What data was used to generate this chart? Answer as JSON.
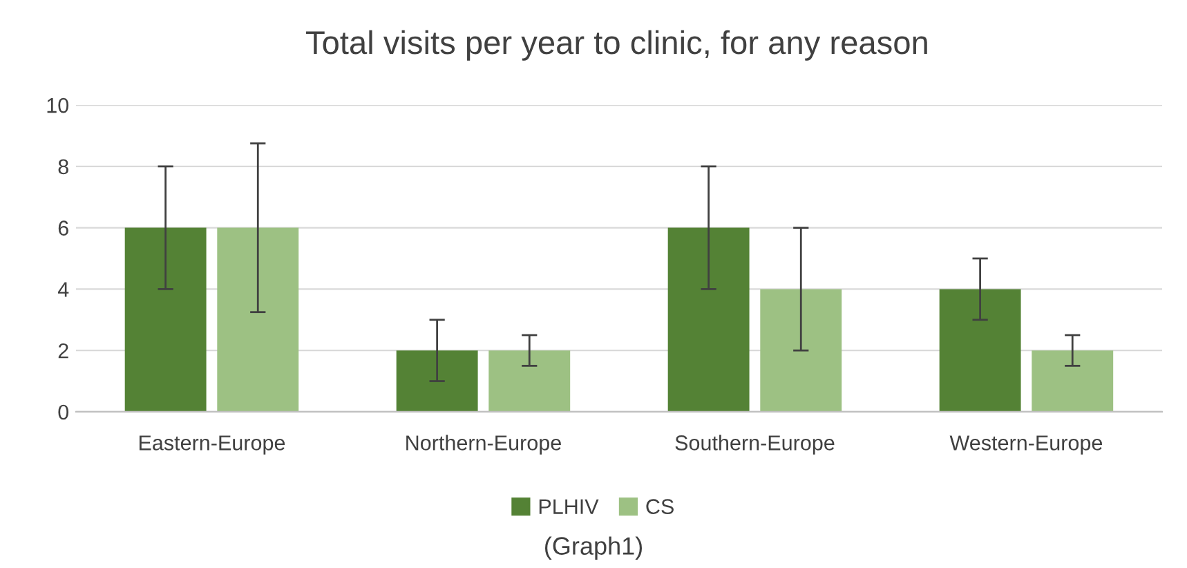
{
  "chart_data": {
    "type": "bar",
    "title": "Total visits per year to clinic, for any reason",
    "categories": [
      "Eastern-Europe",
      "Northern-Europe",
      "Southern-Europe",
      "Western-Europe"
    ],
    "series": [
      {
        "name": "PLHIV",
        "color": "#548235",
        "values": [
          6,
          2,
          6,
          4
        ],
        "errors": [
          2,
          1,
          2,
          1
        ]
      },
      {
        "name": "CS",
        "color": "#9dc183",
        "values": [
          6,
          2,
          4,
          2
        ],
        "errors": [
          2.75,
          0.5,
          2,
          0.5
        ]
      }
    ],
    "ylim": [
      0,
      10
    ],
    "yticks": [
      0,
      2,
      4,
      6,
      8,
      10
    ],
    "grid": "y",
    "legend": "bottom",
    "annotations": [
      "(Graph1)"
    ]
  }
}
